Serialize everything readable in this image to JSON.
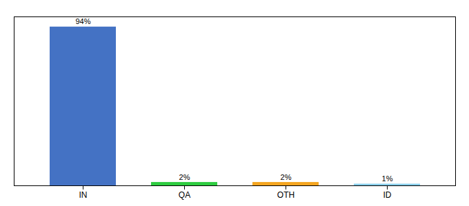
{
  "chart_data": {
    "type": "bar",
    "categories": [
      "IN",
      "QA",
      "OTH",
      "ID"
    ],
    "values": [
      94,
      2,
      2,
      1
    ],
    "value_labels": [
      "94%",
      "2%",
      "2%",
      "1%"
    ],
    "colors": [
      "#4472C4",
      "#2ECC40",
      "#F4A520",
      "#87CEEB"
    ],
    "ylim": [
      0,
      100
    ],
    "data_labels": true,
    "tick_labels": "x",
    "grid": false
  }
}
